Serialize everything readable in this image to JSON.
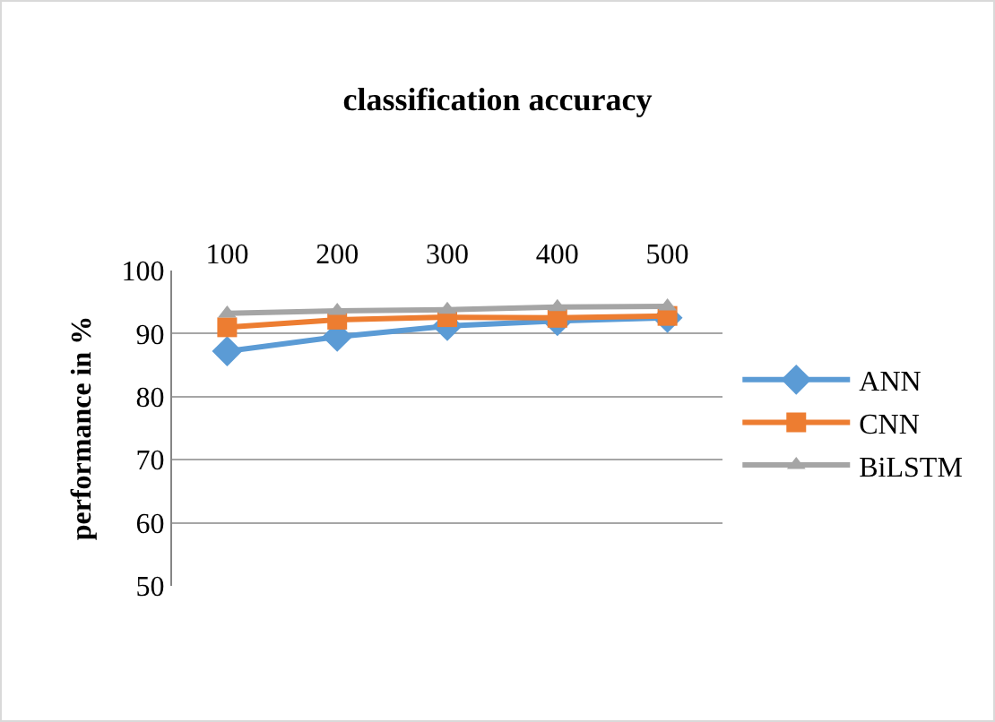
{
  "chart_data": {
    "type": "line",
    "title": "classification accuracy",
    "ylabel": "performance in %",
    "categories": [
      "100",
      "200",
      "300",
      "400",
      "500"
    ],
    "series": [
      {
        "name": "ANN",
        "color": "#5b9bd5",
        "marker": "diamond",
        "values": [
          87.2,
          89.5,
          91.2,
          92,
          92.5
        ]
      },
      {
        "name": "CNN",
        "color": "#ed7d31",
        "marker": "square",
        "values": [
          91,
          92.2,
          92.6,
          92.5,
          92.8
        ]
      },
      {
        "name": "BiLSTM",
        "color": "#a5a5a5",
        "marker": "triangle",
        "values": [
          93.2,
          93.6,
          93.8,
          94.2,
          94.3
        ]
      }
    ],
    "ylim": [
      50,
      100
    ],
    "yticks": [
      50,
      60,
      70,
      80,
      90,
      100
    ],
    "grid": "y",
    "legend": "right"
  }
}
